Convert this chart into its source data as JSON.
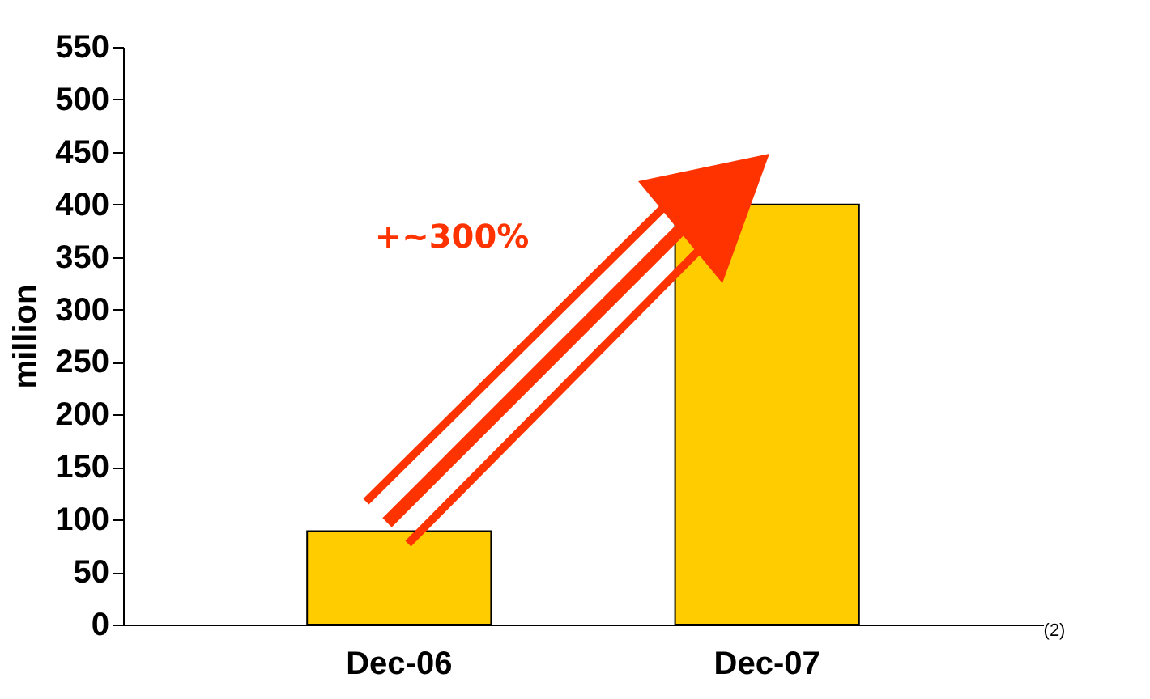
{
  "chart_data": {
    "type": "bar",
    "ylabel": "million",
    "categories": [
      "Dec-06",
      "Dec-07"
    ],
    "values": [
      89,
      400
    ],
    "color": "#ffcc00",
    "ylim": [
      0,
      550
    ],
    "yticks": [
      0,
      50,
      100,
      150,
      200,
      250,
      300,
      350,
      400,
      450,
      500,
      550
    ],
    "grid": false,
    "annotations": [
      "+~300%",
      "(2)"
    ]
  }
}
